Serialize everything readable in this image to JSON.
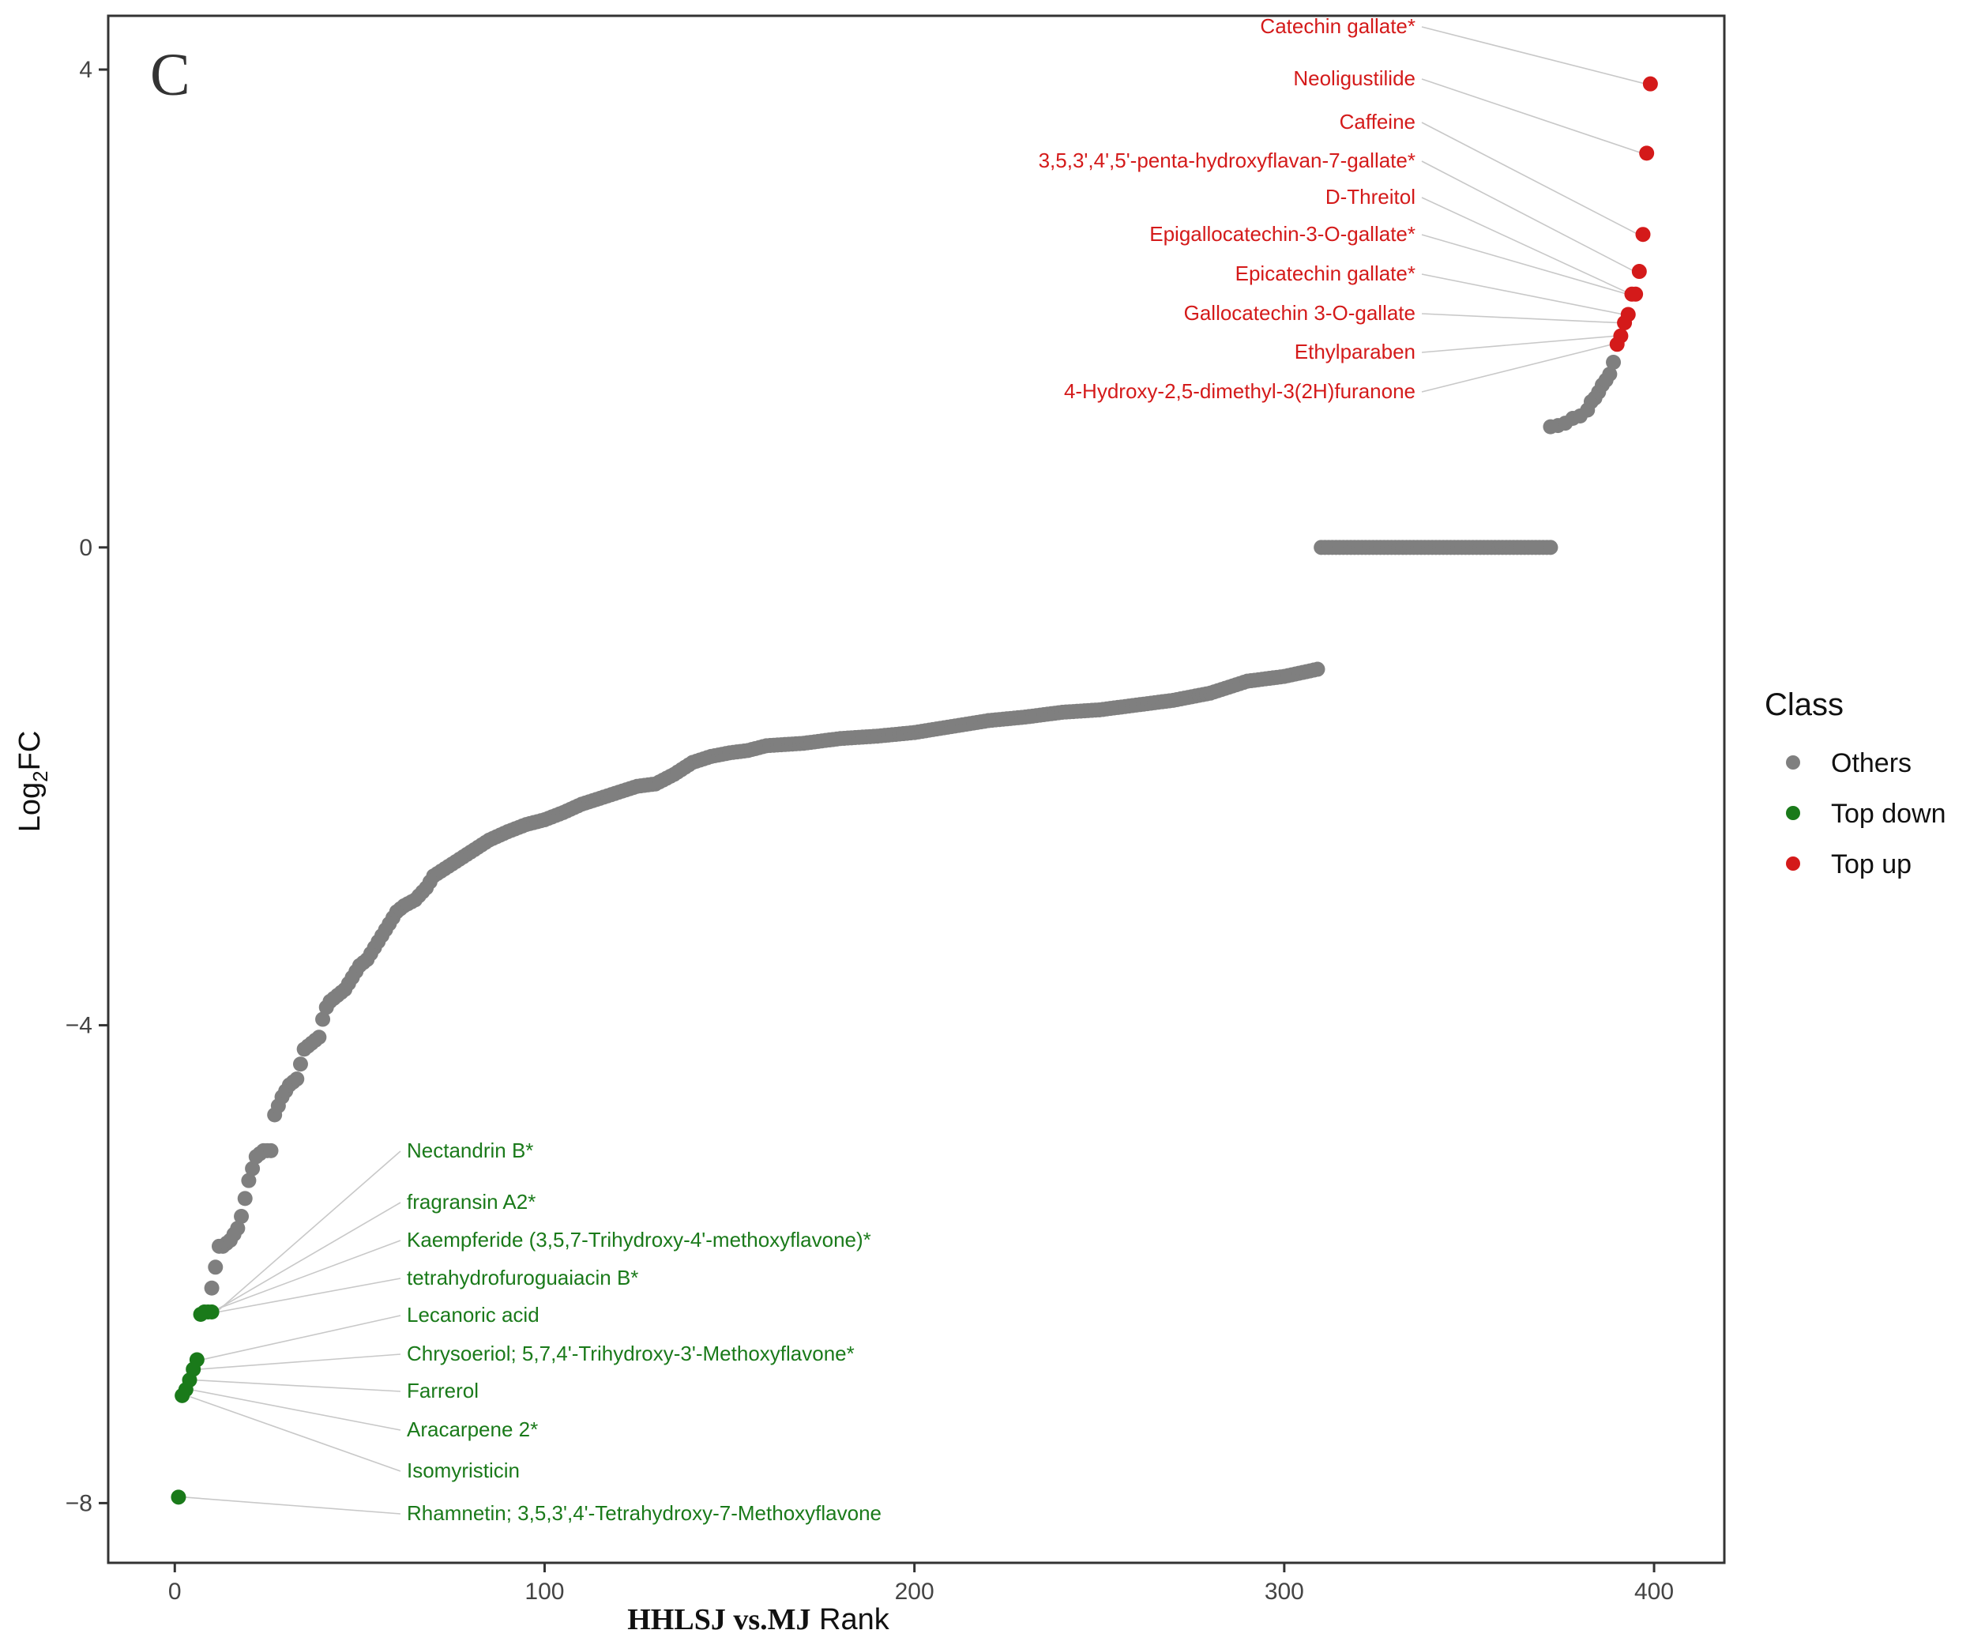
{
  "chart_data": {
    "type": "scatter",
    "panel_label": "C",
    "title": "",
    "xlabel_bold": "HHLSJ vs.MJ",
    "xlabel_rest": " Rank",
    "ylabel_main": "Log",
    "ylabel_sub": "2",
    "ylabel_end": "FC",
    "xlim": [
      -18,
      419
    ],
    "ylim": [
      -8.5,
      4.45
    ],
    "x_ticks": [
      0,
      100,
      200,
      300,
      400
    ],
    "x_tick_labels": [
      "0",
      "100",
      "200",
      "300",
      "400"
    ],
    "y_ticks": [
      4,
      0,
      -4,
      -8
    ],
    "y_tick_labels": [
      "4",
      "0",
      "−4",
      "−8"
    ],
    "grid": false,
    "legend": {
      "title": "Class",
      "position": "right",
      "entries": [
        {
          "label": "Others",
          "color": "#7f7f7f"
        },
        {
          "label": "Top down",
          "color": "#1a7a1a"
        },
        {
          "label": "Top up",
          "color": "#d41a1a"
        }
      ]
    },
    "others_curve": {
      "x": [
        10,
        12,
        13,
        15,
        17,
        18,
        19,
        20,
        22,
        24,
        26,
        27,
        29,
        31,
        33,
        35,
        37,
        39,
        40,
        41,
        42,
        44,
        46,
        48,
        50,
        52,
        55,
        58,
        60,
        62,
        65,
        68,
        70,
        75,
        80,
        85,
        90,
        95,
        100,
        105,
        110,
        115,
        120,
        125,
        130,
        135,
        140,
        145,
        150,
        155,
        160,
        170,
        180,
        190,
        200,
        210,
        220,
        230,
        240,
        250,
        260,
        270,
        280,
        290,
        300,
        309
      ],
      "y": [
        -6.2,
        -5.85,
        -5.85,
        -5.8,
        -5.7,
        -5.6,
        -5.45,
        -5.3,
        -5.1,
        -5.05,
        -5.05,
        -4.75,
        -4.6,
        -4.5,
        -4.45,
        -4.2,
        -4.15,
        -4.1,
        -3.95,
        -3.85,
        -3.8,
        -3.75,
        -3.7,
        -3.6,
        -3.5,
        -3.45,
        -3.3,
        -3.15,
        -3.05,
        -3.0,
        -2.95,
        -2.85,
        -2.75,
        -2.65,
        -2.55,
        -2.45,
        -2.38,
        -2.32,
        -2.28,
        -2.22,
        -2.15,
        -2.1,
        -2.05,
        -2.0,
        -1.98,
        -1.9,
        -1.8,
        -1.75,
        -1.72,
        -1.7,
        -1.66,
        -1.64,
        -1.6,
        -1.58,
        -1.55,
        -1.5,
        -1.45,
        -1.42,
        -1.38,
        -1.36,
        -1.32,
        -1.28,
        -1.22,
        -1.12,
        -1.08,
        -1.02
      ]
    },
    "others_zero": {
      "x_start": 310,
      "x_end": 372,
      "y": 0
    },
    "others_high": {
      "x": [
        372,
        374,
        376,
        378,
        380,
        382,
        383,
        384,
        385,
        386,
        387,
        388,
        389
      ],
      "y": [
        1.01,
        1.02,
        1.04,
        1.08,
        1.1,
        1.15,
        1.22,
        1.25,
        1.3,
        1.36,
        1.4,
        1.45,
        1.55
      ]
    },
    "top_up": {
      "x": [
        399,
        398,
        397,
        396,
        395,
        394,
        393,
        392,
        391,
        390
      ],
      "y": [
        3.88,
        3.3,
        2.62,
        2.31,
        2.12,
        2.12,
        1.95,
        1.88,
        1.77,
        1.7
      ],
      "labels": [
        "Catechin gallate*",
        "Neoligustilide",
        "Caffeine",
        "3,5,3',4',5'-penta-hydroxyflavan-7-gallate*",
        "D-Threitol",
        "Epigallocatechin-3-O-gallate*",
        "Epicatechin gallate*",
        "Gallocatechin 3-O-gallate",
        "Ethylparaben",
        "4-Hydroxy-2,5-dimethyl-3(2H)furanone"
      ],
      "label_rank": [
        1,
        2,
        3,
        4,
        5,
        6,
        7,
        8,
        9,
        10
      ]
    },
    "top_down": {
      "x": [
        10,
        9,
        8,
        7,
        6,
        5,
        4,
        3,
        2,
        1
      ],
      "y": [
        -6.4,
        -6.4,
        -6.4,
        -6.42,
        -6.8,
        -6.88,
        -6.97,
        -7.05,
        -7.1,
        -7.95
      ],
      "labels": [
        "Nectandrin B*",
        "fragransin A2*",
        "Kaempferide (3,5,7-Trihydroxy-4'-methoxyflavone)*",
        "tetrahydrofuroguaiacin B*",
        "Lecanoric acid",
        "Chrysoeriol; 5,7,4'-Trihydroxy-3'-Methoxyflavone*",
        "Farrerol",
        "Aracarpene 2*",
        "Isomyristicin",
        "Rhamnetin; 3,5,3',4'-Tetrahydroxy-7-Methoxyflavone"
      ]
    }
  }
}
